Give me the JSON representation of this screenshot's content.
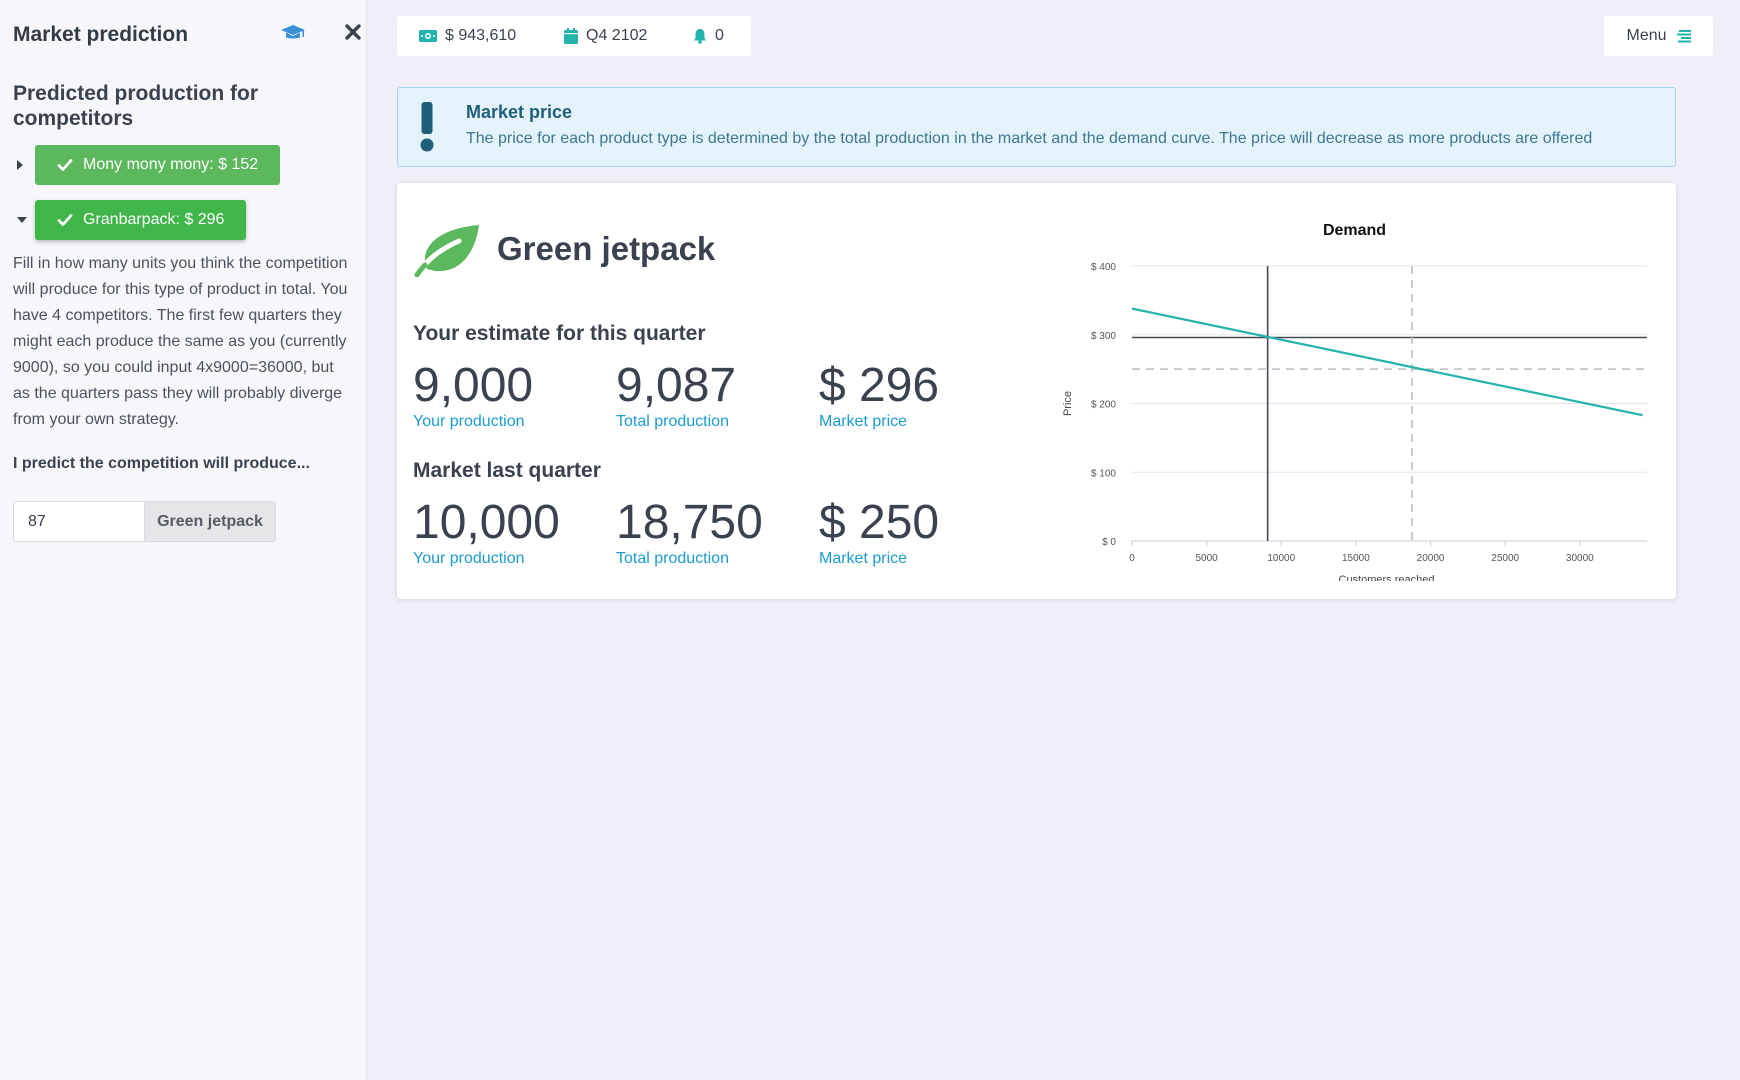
{
  "sidebar": {
    "title": "Market prediction",
    "subtitle": "Predicted production for competitors",
    "competitors": [
      {
        "label": "Mony mony mony: $ 152",
        "expanded": false
      },
      {
        "label": "Granbarpack: $ 296",
        "expanded": true
      }
    ],
    "help_text": "Fill in how many units you think the competition will produce for this type of product in total. You have 4 competitors. The first few quarters they might each produce the same as you (currently 9000), so you could input 4x9000=36000, but as the quarters pass they will probably diverge from your own strategy.",
    "predict_label": "I predict the competition will produce...",
    "input_value": "87",
    "input_addon": "Green jetpack"
  },
  "topbar": {
    "money": "$ 943,610",
    "quarter": "Q4 2102",
    "notifications": "0"
  },
  "menu": {
    "label": "Menu"
  },
  "alert": {
    "title": "Market price",
    "text": "The price for each product type is determined by the total production in the market and the demand curve. The price will decrease as more products are offered"
  },
  "product": {
    "name": "Green jetpack",
    "estimate_title": "Your estimate for this quarter",
    "estimate": [
      {
        "value": "9,000",
        "label": "Your production"
      },
      {
        "value": "9,087",
        "label": "Total production"
      },
      {
        "value": "$ 296",
        "label": "Market price"
      }
    ],
    "last_title": "Market last quarter",
    "last": [
      {
        "value": "10,000",
        "label": "Your production"
      },
      {
        "value": "18,750",
        "label": "Total production"
      },
      {
        "value": "$ 250",
        "label": "Market price"
      }
    ]
  },
  "colors": {
    "accent_teal": "#22b3ad",
    "success_green": "#5cb85c",
    "label_blue": "#1b9bd1",
    "alert_bg": "#e4f2fb"
  },
  "chart_data": {
    "type": "line",
    "title": "Demand",
    "xlabel": "Customers reached",
    "ylabel": "Price",
    "xlim": [
      0,
      34500
    ],
    "ylim": [
      0,
      400
    ],
    "x_ticks": [
      0,
      5000,
      10000,
      15000,
      20000,
      25000,
      30000
    ],
    "x_tick_labels": [
      "0",
      "5000",
      "10000",
      "15000",
      "20000",
      "25000",
      "30000"
    ],
    "y_ticks": [
      0,
      100,
      200,
      300,
      400
    ],
    "y_tick_labels": [
      "$ 0",
      "$ 100",
      "$ 200",
      "$ 300",
      "$ 400"
    ],
    "series": [
      {
        "x": [
          0,
          34200
        ],
        "y": [
          338,
          183
        ]
      }
    ],
    "reference_lines": [
      {
        "style": "solid",
        "x": 9087,
        "y": 296
      },
      {
        "style": "dashed",
        "x": 18750,
        "y": 250
      }
    ],
    "grid": true
  }
}
